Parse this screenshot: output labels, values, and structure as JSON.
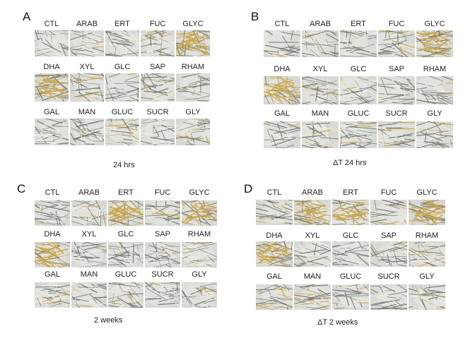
{
  "panels": [
    {
      "letter": "A",
      "rows": [
        [
          "CTL",
          "ARAB",
          "ERT",
          "FUC",
          "GLYC"
        ],
        [
          "DHA",
          "XYL",
          "GLC",
          "SAP",
          "RHAM"
        ],
        [
          "GAL",
          "MAN",
          "GLUC",
          "SUCR",
          "GLY"
        ]
      ],
      "caption": "24 hrs"
    },
    {
      "letter": "B",
      "rows": [
        [
          "CTL",
          "ARAB",
          "ERT",
          "FUC",
          "GLYC"
        ],
        [
          "DHA",
          "XYL",
          "GLC",
          "SAP",
          "RHAM"
        ],
        [
          "GAL",
          "MAN",
          "GLUC",
          "SUCR",
          "GLY"
        ]
      ],
      "caption": "ΔT 24 hrs"
    },
    {
      "letter": "C",
      "rows": [
        [
          "CTL",
          "ARAB",
          "ERT",
          "FUC",
          "GLYC"
        ],
        [
          "DHA",
          "XYL",
          "GLC",
          "SAP",
          "RHAM"
        ],
        [
          "GAL",
          "MAN",
          "GLUC",
          "SUCR",
          "GLY"
        ]
      ],
      "caption": "2 weeks"
    },
    {
      "letter": "D",
      "rows": [
        [
          "CTL",
          "ARAB",
          "ERT",
          "FUC",
          "GLYC"
        ],
        [
          "DHA",
          "XYL",
          "GLC",
          "SAP",
          "RHAM"
        ],
        [
          "GAL",
          "MAN",
          "GLUC",
          "SUCR",
          "GLY"
        ]
      ],
      "caption": "ΔT 2 weeks"
    }
  ],
  "colors": {
    "background_gray": "#d8d8d4",
    "fiber_gray": "#6e7270",
    "fiber_light": "#eeeee6",
    "yellow_stain": "#c9a64a"
  }
}
